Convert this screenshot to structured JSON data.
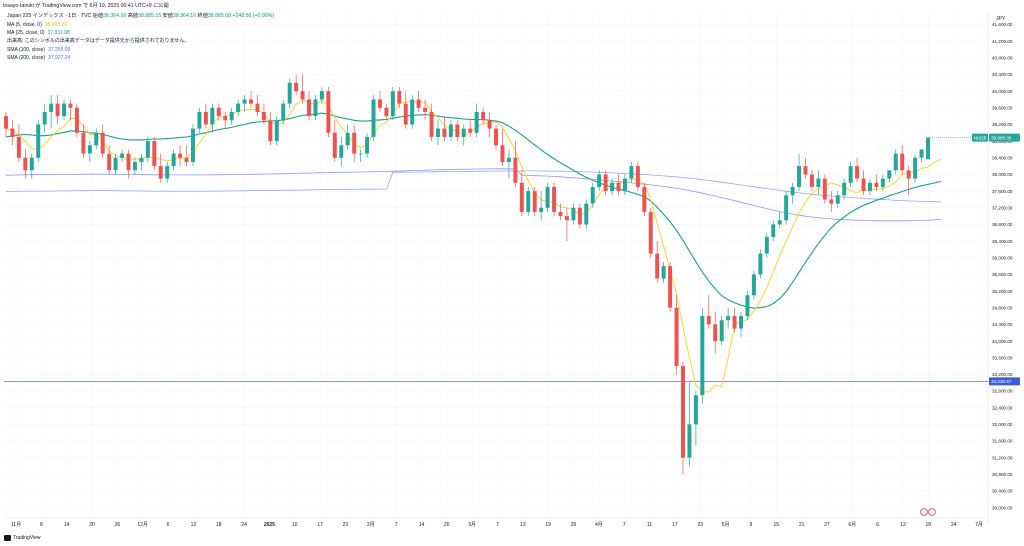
{
  "header": {
    "publish_line": "tosayo-tanuki が TradingView.com で 6月 19, 2025 00:41 UTC+9 に公開",
    "symbol_title": "Japan 225 インデックス · 1日 · TVC",
    "ohlc": {
      "open_label": "始値",
      "open": "38,364.16",
      "high_label": "高値",
      "high": "38,885.15",
      "low_label": "安値",
      "low": "38,364.16",
      "close_label": "終値",
      "close": "38,885.08",
      "change": "+248.56 (+0.90%)"
    }
  },
  "legend": [
    {
      "label": "MA (5, close, 0)",
      "value": "38,363.26",
      "color": "#e8c21a"
    },
    {
      "label": "MA (25, close, 0)",
      "value": "37,831.08",
      "color": "#1b9e8a"
    },
    {
      "label": "出来高: このシンボルの出来高データはデータ提供元から提供されておりません。",
      "value": "",
      "color": "#131722"
    },
    {
      "label": "SMA (100, close)",
      "value": "37,255.09",
      "color": "#5b6bf0"
    },
    {
      "label": "SMA (200, close)",
      "value": "37,927.24",
      "color": "#4a7bd8"
    }
  ],
  "branding": {
    "text": "TradingView"
  },
  "colors": {
    "up": "#26a69a",
    "down": "#ef5350",
    "ma5": "#f2d638",
    "ma25": "#1b9e8a",
    "sma100": "#7b86e8",
    "sma200": "#6a8fe0",
    "hline": "#3b5bdb"
  },
  "chart_data": {
    "type": "candlestick",
    "currency": "JPY",
    "y_ticks": [
      "41,600.00",
      "41,200.00",
      "40,800.00",
      "40,400.00",
      "40,000.00",
      "39,600.00",
      "39,200.00",
      "38,800.00",
      "38,400.00",
      "38,000.00",
      "37,600.00",
      "37,200.00",
      "36,800.00",
      "36,400.00",
      "36,000.00",
      "35,600.00",
      "35,200.00",
      "34,800.00",
      "34,400.00",
      "34,000.00",
      "33,600.00",
      "33,200.00",
      "32,800.00",
      "32,400.00",
      "32,000.00",
      "31,600.00",
      "31,200.00",
      "30,800.00",
      "30,400.00",
      "30,000.00"
    ],
    "ylim": [
      29800,
      41900
    ],
    "x_ticks": [
      "11月",
      "8",
      "14",
      "20",
      "26",
      "12月",
      "6",
      "12",
      "18",
      "24",
      "2025",
      "10",
      "17",
      "23",
      "2月",
      "7",
      "14",
      "20",
      "3月",
      "7",
      "13",
      "19",
      "26",
      "4月",
      "7",
      "11",
      "17",
      "23",
      "5月",
      "9",
      "15",
      "21",
      "27",
      "6月",
      "6",
      "12",
      "18",
      "24",
      "7月"
    ],
    "last_price_label": "NI225",
    "last_price": "38,885.08",
    "horizontal_line": {
      "value": 33030.67,
      "label": "33,030.67"
    },
    "candles": [
      [
        39400,
        39500,
        38900,
        39100
      ],
      [
        39100,
        39300,
        38700,
        38900
      ],
      [
        38900,
        39200,
        38300,
        38400
      ],
      [
        38400,
        38600,
        37900,
        38100
      ],
      [
        38100,
        38500,
        37900,
        38400
      ],
      [
        38400,
        39300,
        38300,
        39200
      ],
      [
        39200,
        39700,
        39000,
        39500
      ],
      [
        39500,
        39900,
        39100,
        39700
      ],
      [
        39700,
        39900,
        39200,
        39400
      ],
      [
        39400,
        39800,
        39300,
        39700
      ],
      [
        39700,
        39800,
        39300,
        39600
      ],
      [
        39600,
        39700,
        38900,
        39000
      ],
      [
        39000,
        39200,
        38400,
        38500
      ],
      [
        38500,
        38800,
        38300,
        38700
      ],
      [
        38700,
        39100,
        38600,
        39000
      ],
      [
        39000,
        39200,
        38400,
        38500
      ],
      [
        38500,
        38700,
        38000,
        38100
      ],
      [
        38100,
        38500,
        38000,
        38400
      ],
      [
        38400,
        38600,
        38300,
        38500
      ],
      [
        38500,
        38600,
        37900,
        38100
      ],
      [
        38100,
        38400,
        38000,
        38300
      ],
      [
        38300,
        38500,
        38100,
        38400
      ],
      [
        38400,
        38900,
        38300,
        38800
      ],
      [
        38800,
        38900,
        38100,
        38200
      ],
      [
        38200,
        38500,
        37800,
        37900
      ],
      [
        37900,
        38300,
        37800,
        38200
      ],
      [
        38200,
        38600,
        38100,
        38500
      ],
      [
        38500,
        38700,
        38200,
        38400
      ],
      [
        38400,
        38700,
        38200,
        38300
      ],
      [
        38300,
        39200,
        38200,
        39100
      ],
      [
        39100,
        39600,
        39000,
        39500
      ],
      [
        39500,
        39700,
        39100,
        39200
      ],
      [
        39200,
        39700,
        39000,
        39600
      ],
      [
        39600,
        39700,
        39300,
        39400
      ],
      [
        39400,
        39500,
        39100,
        39300
      ],
      [
        39300,
        39600,
        39200,
        39500
      ],
      [
        39500,
        39800,
        39400,
        39700
      ],
      [
        39700,
        39900,
        39500,
        39800
      ],
      [
        39800,
        40000,
        39600,
        39700
      ],
      [
        39700,
        39900,
        39400,
        39500
      ],
      [
        39500,
        39700,
        39200,
        39300
      ],
      [
        39300,
        39500,
        38700,
        38800
      ],
      [
        38800,
        39400,
        38700,
        39300
      ],
      [
        39300,
        39800,
        39200,
        39700
      ],
      [
        39700,
        40300,
        39600,
        40200
      ],
      [
        40200,
        40400,
        39900,
        40000
      ],
      [
        40000,
        40400,
        39700,
        39800
      ],
      [
        39800,
        40000,
        39300,
        39400
      ],
      [
        39400,
        39900,
        39300,
        39800
      ],
      [
        39800,
        40100,
        39700,
        40000
      ],
      [
        40000,
        40100,
        38900,
        39000
      ],
      [
        39000,
        39300,
        38300,
        38400
      ],
      [
        38400,
        38900,
        38200,
        38700
      ],
      [
        38700,
        39200,
        38600,
        39000
      ],
      [
        39000,
        39200,
        38300,
        38500
      ],
      [
        38500,
        38600,
        38300,
        38500
      ],
      [
        38500,
        39000,
        38400,
        38900
      ],
      [
        38900,
        39900,
        38800,
        39800
      ],
      [
        39800,
        40000,
        39500,
        39600
      ],
      [
        39600,
        39700,
        39300,
        39400
      ],
      [
        39400,
        40100,
        39300,
        40000
      ],
      [
        40000,
        40100,
        39600,
        39700
      ],
      [
        39700,
        40000,
        39100,
        39200
      ],
      [
        39200,
        39900,
        39100,
        39800
      ],
      [
        39800,
        40000,
        39500,
        39600
      ],
      [
        39600,
        39800,
        39300,
        39500
      ],
      [
        39500,
        39700,
        38800,
        38900
      ],
      [
        38900,
        39300,
        38700,
        39100
      ],
      [
        39100,
        39400,
        38800,
        38900
      ],
      [
        38900,
        39300,
        38800,
        39200
      ],
      [
        39200,
        39300,
        38800,
        38900
      ],
      [
        38900,
        39200,
        38700,
        39100
      ],
      [
        39100,
        39300,
        38900,
        39000
      ],
      [
        39000,
        39700,
        38900,
        39500
      ],
      [
        39500,
        39600,
        39200,
        39300
      ],
      [
        39300,
        39500,
        38900,
        39100
      ],
      [
        39100,
        39200,
        38600,
        38700
      ],
      [
        38700,
        39100,
        38200,
        38300
      ],
      [
        38300,
        38600,
        37900,
        38400
      ],
      [
        38400,
        38800,
        37700,
        37800
      ],
      [
        37800,
        38100,
        37000,
        37100
      ],
      [
        37100,
        37700,
        37000,
        37600
      ],
      [
        37600,
        37700,
        37000,
        37100
      ],
      [
        37100,
        37600,
        36900,
        37200
      ],
      [
        37200,
        37800,
        37100,
        37700
      ],
      [
        37700,
        37800,
        37000,
        37100
      ],
      [
        37100,
        37300,
        36900,
        37000
      ],
      [
        37000,
        37200,
        36400,
        36900
      ],
      [
        36900,
        37300,
        36800,
        37200
      ],
      [
        37200,
        37300,
        36700,
        36800
      ],
      [
        36800,
        37400,
        36700,
        37300
      ],
      [
        37300,
        37800,
        37200,
        37700
      ],
      [
        37700,
        38100,
        37600,
        38000
      ],
      [
        38000,
        38100,
        37500,
        37600
      ],
      [
        37600,
        37900,
        37500,
        37800
      ],
      [
        37800,
        38000,
        37500,
        37600
      ],
      [
        37600,
        38000,
        37500,
        37900
      ],
      [
        37900,
        38300,
        37800,
        38200
      ],
      [
        38200,
        38300,
        37600,
        37700
      ],
      [
        37700,
        37800,
        37000,
        37100
      ],
      [
        37100,
        37200,
        36000,
        36100
      ],
      [
        36100,
        36400,
        35400,
        35500
      ],
      [
        35500,
        35900,
        35400,
        35800
      ],
      [
        35800,
        35900,
        34700,
        34800
      ],
      [
        34800,
        35100,
        33200,
        33400
      ],
      [
        33400,
        33500,
        30800,
        31200
      ],
      [
        31200,
        33000,
        31000,
        32000
      ],
      [
        32000,
        32800,
        31500,
        32700
      ],
      [
        32700,
        34800,
        32500,
        34600
      ],
      [
        34600,
        35100,
        34300,
        34400
      ],
      [
        34400,
        34700,
        33700,
        34000
      ],
      [
        34000,
        34600,
        33900,
        34500
      ],
      [
        34500,
        34800,
        34300,
        34600
      ],
      [
        34600,
        34800,
        34200,
        34300
      ],
      [
        34300,
        34700,
        34100,
        34600
      ],
      [
        34600,
        35200,
        34500,
        35100
      ],
      [
        35100,
        35700,
        35000,
        35600
      ],
      [
        35600,
        36200,
        35500,
        36100
      ],
      [
        36100,
        36600,
        36000,
        36500
      ],
      [
        36500,
        36900,
        36400,
        36800
      ],
      [
        36800,
        37100,
        36700,
        36900
      ],
      [
        36900,
        37600,
        36800,
        37500
      ],
      [
        37500,
        37800,
        37300,
        37700
      ],
      [
        37700,
        38500,
        37600,
        38200
      ],
      [
        38200,
        38400,
        37900,
        38000
      ],
      [
        38000,
        38100,
        37600,
        37700
      ],
      [
        37700,
        38100,
        37500,
        37900
      ],
      [
        37900,
        38000,
        37300,
        37400
      ],
      [
        37400,
        37600,
        37100,
        37300
      ],
      [
        37300,
        37600,
        37200,
        37500
      ],
      [
        37500,
        37900,
        37400,
        37800
      ],
      [
        37800,
        38300,
        37700,
        38200
      ],
      [
        38200,
        38400,
        37800,
        37900
      ],
      [
        37900,
        38100,
        37500,
        37600
      ],
      [
        37600,
        37900,
        37500,
        37800
      ],
      [
        37800,
        38000,
        37600,
        37700
      ],
      [
        37700,
        38000,
        37600,
        37900
      ],
      [
        37900,
        38100,
        37800,
        38100
      ],
      [
        38100,
        38600,
        38000,
        38500
      ],
      [
        38500,
        38700,
        38000,
        38100
      ],
      [
        38100,
        38200,
        37500,
        37900
      ],
      [
        37900,
        38500,
        37800,
        38400
      ],
      [
        38400,
        38600,
        38300,
        38600
      ],
      [
        38364,
        38885,
        38364,
        38885
      ]
    ],
    "ma5": [
      39100,
      39050,
      38950,
      38800,
      38620,
      38600,
      38720,
      38900,
      39050,
      39150,
      39350,
      39340,
      39160,
      38960,
      38960,
      38800,
      38570,
      38450,
      38420,
      38320,
      38380,
      38360,
      38420,
      38400,
      38360,
      38330,
      38360,
      38400,
      38380,
      38540,
      38760,
      38960,
      39220,
      39360,
      39400,
      39440,
      39520,
      39550,
      39560,
      39550,
      39460,
      39260,
      39180,
      39260,
      39440,
      39680,
      39780,
      39720,
      39680,
      39780,
      39640,
      39360,
      39140,
      38960,
      38720,
      38640,
      38720,
      38960,
      39180,
      39250,
      39460,
      39700,
      39740,
      39760,
      39740,
      39740,
      39500,
      39360,
      39180,
      39080,
      39040,
      38940,
      39020,
      39140,
      39220,
      39240,
      39260,
      39140,
      38860,
      38560,
      38170,
      37850,
      37570,
      37390,
      37340,
      37340,
      37220,
      37200,
      37140,
      37040,
      37060,
      37280,
      37520,
      37680,
      37790,
      37780,
      37820,
      37880,
      37880,
      37760,
      37400,
      36820,
      36280,
      35720,
      35120,
      34340,
      33600,
      32940,
      32780,
      32780,
      32940,
      32900,
      33580,
      34400,
      34460,
      34520,
      34720,
      34980,
      35280,
      35660,
      36060,
      36400,
      36740,
      37080,
      37340,
      37540,
      37660,
      37700,
      37800,
      37750,
      37680,
      37620,
      37560,
      37640,
      37640,
      37640,
      37660,
      37720,
      37820,
      38000,
      38040,
      38060,
      38140,
      38180,
      38300,
      38363
    ],
    "ma25": [
      38900,
      38920,
      38950,
      38960,
      38950,
      38930,
      38930,
      38950,
      38980,
      39010,
      39040,
      39040,
      39030,
      39000,
      38990,
      38960,
      38920,
      38880,
      38850,
      38830,
      38830,
      38830,
      38840,
      38850,
      38850,
      38860,
      38870,
      38890,
      38900,
      38930,
      38970,
      39000,
      39040,
      39080,
      39100,
      39130,
      39170,
      39200,
      39240,
      39260,
      39270,
      39280,
      39290,
      39310,
      39340,
      39380,
      39420,
      39430,
      39450,
      39470,
      39450,
      39400,
      39360,
      39330,
      39300,
      39280,
      39280,
      39300,
      39310,
      39320,
      39350,
      39380,
      39400,
      39420,
      39430,
      39440,
      39420,
      39400,
      39380,
      39360,
      39350,
      39330,
      39320,
      39320,
      39320,
      39300,
      39280,
      39240,
      39160,
      39060,
      38950,
      38830,
      38710,
      38590,
      38480,
      38380,
      38280,
      38190,
      38100,
      38010,
      37930,
      37860,
      37800,
      37740,
      37690,
      37650,
      37610,
      37570,
      37520,
      37460,
      37360,
      37210,
      37040,
      36860,
      36660,
      36420,
      36160,
      35900,
      35660,
      35440,
      35250,
      35090,
      34990,
      34920,
      34860,
      34820,
      34790,
      34800,
      34830,
      34900,
      35020,
      35190,
      35410,
      35650,
      35890,
      36120,
      36340,
      36540,
      36720,
      36860,
      36980,
      37090,
      37180,
      37260,
      37320,
      37380,
      37430,
      37490,
      37540,
      37590,
      37640,
      37690,
      37730,
      37760,
      37800,
      37831
    ]
  }
}
